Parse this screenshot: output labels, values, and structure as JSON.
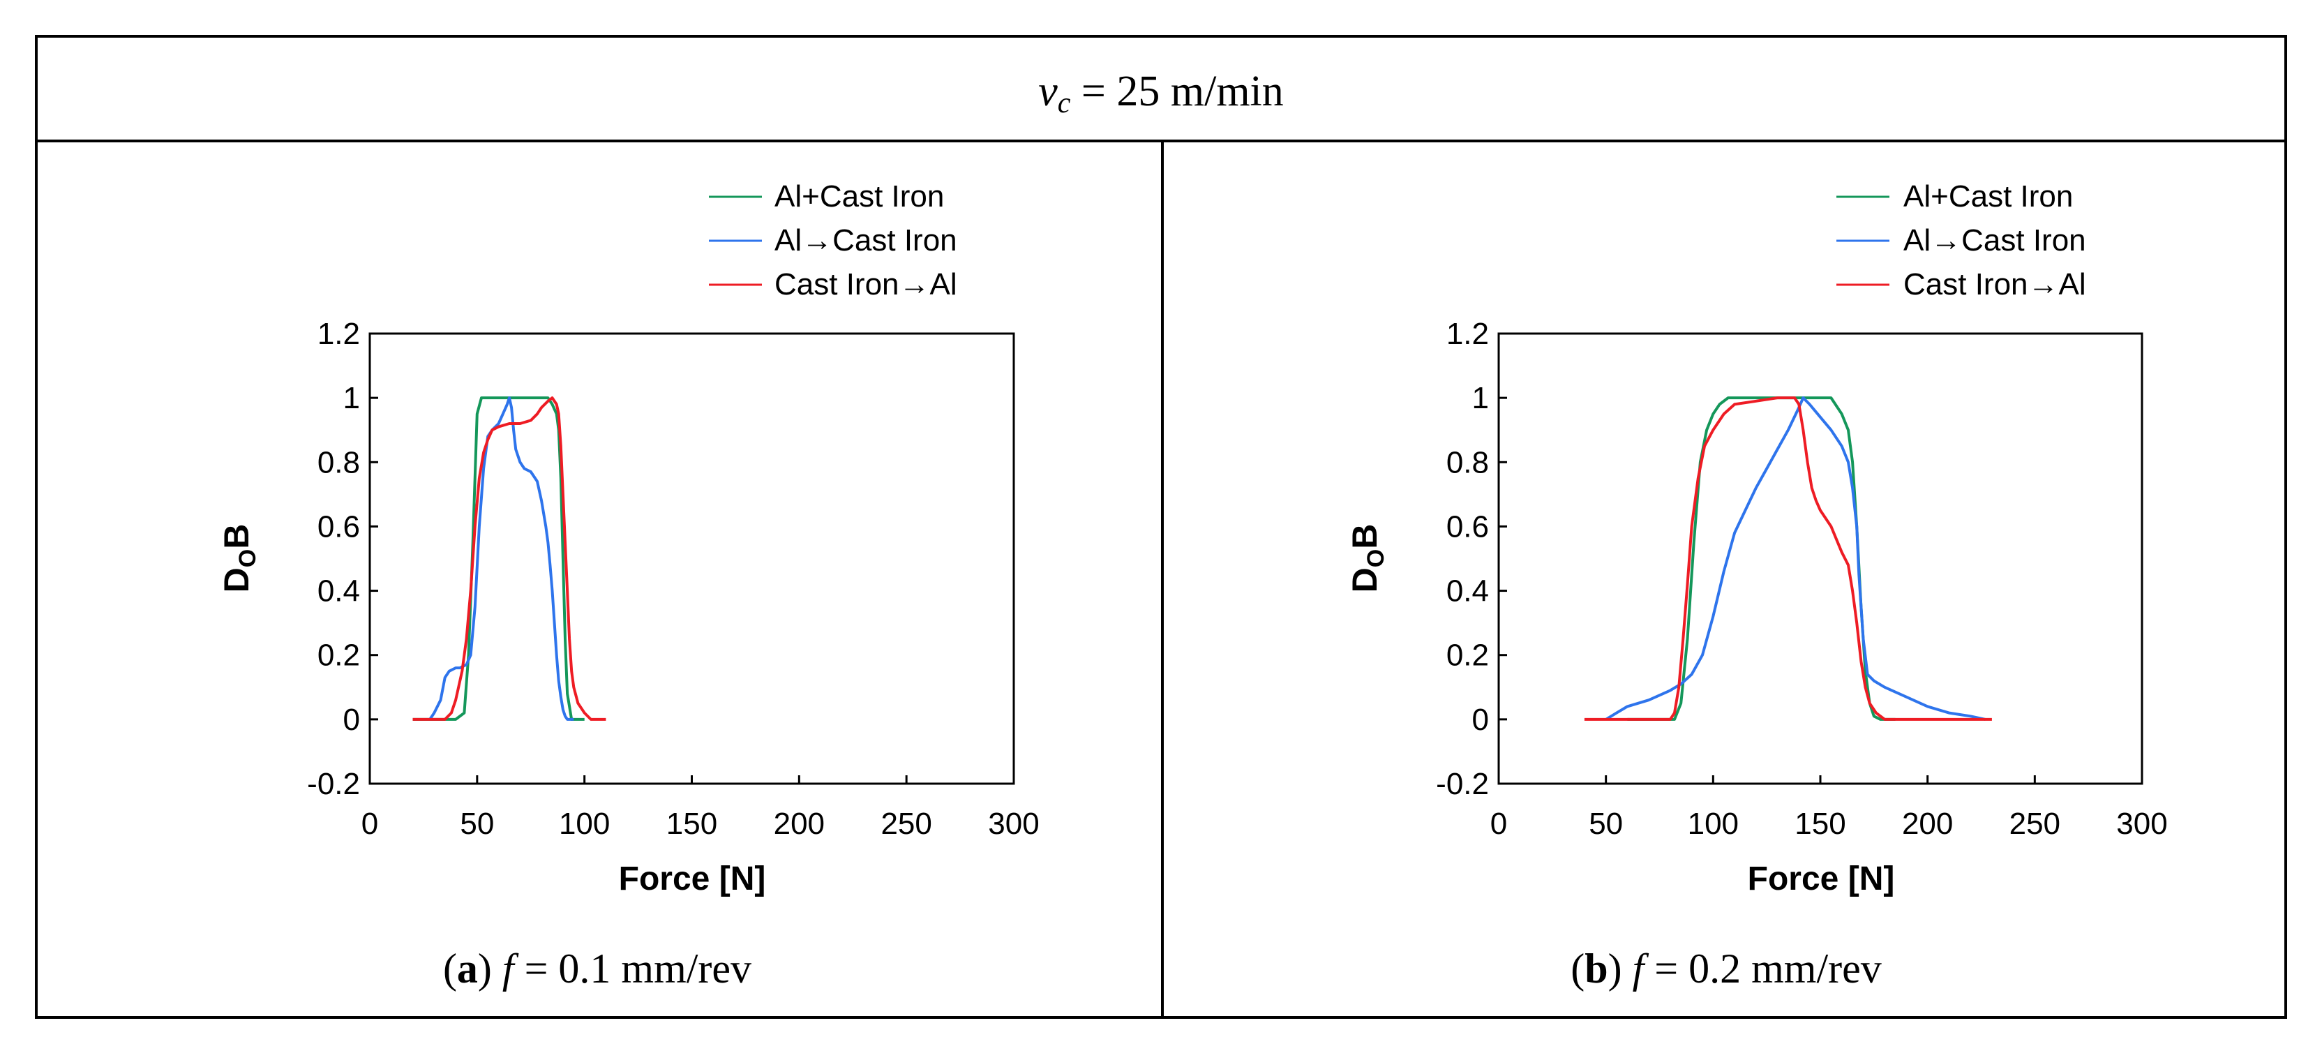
{
  "figure": {
    "header": {
      "var": "v",
      "sub": "c",
      "rest": " = 25 m/min"
    }
  },
  "colors": {
    "green": "#14975a",
    "blue": "#2e74ec",
    "red": "#ee1c24"
  },
  "chart_data": [
    {
      "type": "line",
      "caption": {
        "label": "a",
        "var": "f",
        "rest": " = 0.1 mm/rev"
      },
      "xlabel": "Force [N]",
      "ylabel_main": "D",
      "ylabel_sub": "O",
      "ylabel_tail": "B",
      "xlim": [
        0,
        300
      ],
      "ylim": [
        -0.2,
        1.2
      ],
      "xticks": [
        0,
        50,
        100,
        150,
        200,
        250,
        300
      ],
      "xtick_labels": [
        "0",
        "50",
        "100",
        "150",
        "200",
        "250",
        "300"
      ],
      "yticks": [
        -0.2,
        0,
        0.2,
        0.4,
        0.6,
        0.8,
        1,
        1.2
      ],
      "ytick_labels": [
        "-0.2",
        "0",
        "0.2",
        "0.4",
        "0.6",
        "0.8",
        "1",
        "1.2"
      ],
      "grid": false,
      "legend_position": "above-right",
      "series": [
        {
          "name": "Al+Cast Iron",
          "color_key": "green",
          "x": [
            20,
            40,
            44,
            46,
            48,
            50,
            52,
            55,
            80,
            83,
            85,
            87,
            88,
            89,
            90,
            91,
            92,
            94,
            100
          ],
          "y": [
            0,
            0,
            0.02,
            0.2,
            0.55,
            0.95,
            1,
            1,
            1,
            1,
            0.98,
            0.95,
            0.9,
            0.75,
            0.5,
            0.25,
            0.08,
            0,
            0
          ]
        },
        {
          "name": "Al→Cast Iron",
          "color_key": "blue",
          "x": [
            28,
            30,
            33,
            35,
            37,
            40,
            42,
            45,
            47,
            49,
            51,
            53,
            55,
            57,
            60,
            62,
            64,
            65,
            66,
            67,
            68,
            70,
            72,
            75,
            78,
            80,
            81,
            82,
            83,
            84,
            85,
            86,
            87,
            88,
            89,
            90,
            91,
            92,
            93,
            95
          ],
          "y": [
            0,
            0.02,
            0.06,
            0.13,
            0.15,
            0.16,
            0.16,
            0.17,
            0.2,
            0.35,
            0.6,
            0.78,
            0.88,
            0.9,
            0.92,
            0.95,
            0.98,
            1,
            0.97,
            0.9,
            0.84,
            0.8,
            0.78,
            0.77,
            0.74,
            0.68,
            0.64,
            0.6,
            0.55,
            0.48,
            0.4,
            0.3,
            0.2,
            0.12,
            0.07,
            0.03,
            0.01,
            0,
            0,
            0
          ]
        },
        {
          "name": "Cast Iron→Al",
          "color_key": "red",
          "x": [
            20,
            35,
            38,
            40,
            43,
            45,
            47,
            49,
            51,
            53,
            55,
            57,
            60,
            65,
            70,
            75,
            78,
            80,
            83,
            85,
            87,
            88,
            89,
            90,
            91,
            92,
            93,
            94,
            95,
            97,
            100,
            103,
            110
          ],
          "y": [
            0,
            0,
            0.02,
            0.06,
            0.15,
            0.25,
            0.4,
            0.6,
            0.75,
            0.83,
            0.87,
            0.9,
            0.91,
            0.92,
            0.92,
            0.93,
            0.95,
            0.97,
            0.99,
            1,
            0.98,
            0.95,
            0.85,
            0.7,
            0.55,
            0.4,
            0.25,
            0.15,
            0.1,
            0.05,
            0.02,
            0,
            0
          ]
        }
      ]
    },
    {
      "type": "line",
      "caption": {
        "label": "b",
        "var": "f",
        "rest": " = 0.2 mm/rev"
      },
      "xlabel": "Force [N]",
      "ylabel_main": "D",
      "ylabel_sub": "O",
      "ylabel_tail": "B",
      "xlim": [
        0,
        300
      ],
      "ylim": [
        -0.2,
        1.2
      ],
      "xticks": [
        0,
        50,
        100,
        150,
        200,
        250,
        300
      ],
      "xtick_labels": [
        "0",
        "50",
        "100",
        "150",
        "200",
        "250",
        "300"
      ],
      "yticks": [
        -0.2,
        0,
        0.2,
        0.4,
        0.6,
        0.8,
        1,
        1.2
      ],
      "ytick_labels": [
        "-0.2",
        "0",
        "0.2",
        "0.4",
        "0.6",
        "0.8",
        "1",
        "1.2"
      ],
      "grid": false,
      "legend_position": "above-right",
      "series": [
        {
          "name": "Al+Cast Iron",
          "color_key": "green",
          "x": [
            60,
            82,
            85,
            88,
            91,
            94,
            97,
            100,
            103,
            107,
            155,
            160,
            163,
            165,
            167,
            169,
            171,
            173,
            175,
            178,
            185
          ],
          "y": [
            0,
            0,
            0.05,
            0.25,
            0.55,
            0.8,
            0.9,
            0.95,
            0.98,
            1,
            1,
            0.95,
            0.9,
            0.8,
            0.6,
            0.35,
            0.15,
            0.05,
            0.01,
            0,
            0
          ]
        },
        {
          "name": "Al→Cast Iron",
          "color_key": "blue",
          "x": [
            50,
            55,
            60,
            70,
            80,
            85,
            90,
            95,
            100,
            105,
            110,
            115,
            120,
            125,
            130,
            135,
            140,
            142,
            145,
            150,
            155,
            160,
            163,
            165,
            167,
            168,
            170,
            172,
            175,
            180,
            190,
            200,
            210,
            220,
            227
          ],
          "y": [
            0,
            0.02,
            0.04,
            0.06,
            0.09,
            0.11,
            0.14,
            0.2,
            0.32,
            0.46,
            0.58,
            0.65,
            0.72,
            0.78,
            0.84,
            0.9,
            0.97,
            1,
            0.98,
            0.94,
            0.9,
            0.85,
            0.8,
            0.72,
            0.6,
            0.45,
            0.25,
            0.14,
            0.12,
            0.1,
            0.07,
            0.04,
            0.02,
            0.01,
            0
          ]
        },
        {
          "name": "Cast Iron→Al",
          "color_key": "red",
          "x": [
            40,
            80,
            82,
            84,
            86,
            88,
            90,
            93,
            96,
            100,
            105,
            110,
            120,
            130,
            138,
            140,
            142,
            144,
            146,
            148,
            150,
            155,
            160,
            163,
            165,
            167,
            169,
            171,
            173,
            176,
            180,
            200,
            230
          ],
          "y": [
            0,
            0,
            0.02,
            0.1,
            0.25,
            0.42,
            0.6,
            0.75,
            0.85,
            0.9,
            0.95,
            0.98,
            0.99,
            1,
            1,
            0.98,
            0.9,
            0.8,
            0.72,
            0.68,
            0.65,
            0.6,
            0.52,
            0.48,
            0.4,
            0.3,
            0.18,
            0.1,
            0.05,
            0.02,
            0,
            0,
            0
          ]
        }
      ]
    }
  ]
}
